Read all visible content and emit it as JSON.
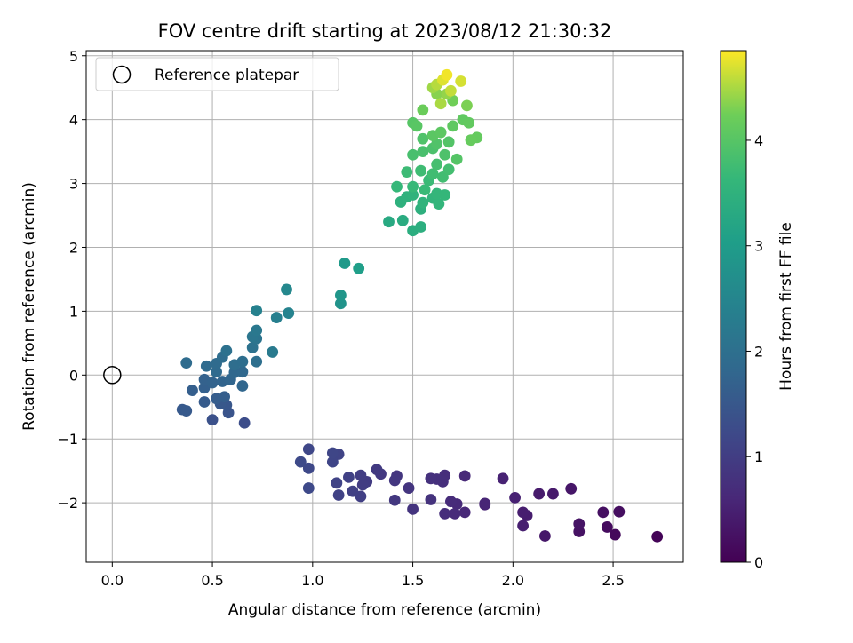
{
  "chart_data": {
    "type": "scatter",
    "title": "FOV centre drift starting at 2023/08/12 21:30:32",
    "xlabel": "Angular distance from reference (arcmin)",
    "ylabel": "Rotation from reference (arcmin)",
    "xlim": [
      -0.13,
      2.85
    ],
    "ylim": [
      -2.93,
      5.08
    ],
    "xticks": [
      0.0,
      0.5,
      1.0,
      1.5,
      2.0,
      2.5
    ],
    "xtick_labels": [
      "0.0",
      "0.5",
      "1.0",
      "1.5",
      "2.0",
      "2.5"
    ],
    "yticks": [
      -2,
      -1,
      0,
      1,
      2,
      3,
      4,
      5
    ],
    "ytick_labels": [
      "−2",
      "−1",
      "0",
      "1",
      "2",
      "3",
      "4",
      "5"
    ],
    "grid": true,
    "legend": {
      "placement": "top-left",
      "entries": [
        "Reference platepar"
      ]
    },
    "reference_point": {
      "name": "Reference platepar",
      "x": 0.0,
      "y": 0.0
    },
    "colorbar": {
      "label": "Hours from first FF file",
      "colormap": "viridis",
      "range": [
        0,
        4.85
      ],
      "ticks": [
        0,
        1,
        2,
        3,
        4
      ],
      "tick_labels": [
        "0",
        "1",
        "2",
        "3",
        "4"
      ]
    },
    "points": [
      [
        2.72,
        -2.53,
        0.05
      ],
      [
        2.51,
        -2.5,
        0.12
      ],
      [
        2.47,
        -2.38,
        0.16
      ],
      [
        2.53,
        -2.14,
        0.2
      ],
      [
        2.45,
        -2.15,
        0.22
      ],
      [
        2.33,
        -2.45,
        0.26
      ],
      [
        2.33,
        -2.33,
        0.29
      ],
      [
        2.29,
        -1.78,
        0.33
      ],
      [
        2.16,
        -2.52,
        0.36
      ],
      [
        2.2,
        -1.86,
        0.38
      ],
      [
        2.13,
        -1.86,
        0.4
      ],
      [
        2.07,
        -2.2,
        0.43
      ],
      [
        2.05,
        -2.15,
        0.45
      ],
      [
        2.05,
        -2.36,
        0.47
      ],
      [
        2.01,
        -1.92,
        0.5
      ],
      [
        1.95,
        -1.62,
        0.52
      ],
      [
        1.86,
        -2.03,
        0.55
      ],
      [
        1.86,
        -2.01,
        0.57
      ],
      [
        1.76,
        -2.15,
        0.6
      ],
      [
        1.76,
        -1.58,
        0.62
      ],
      [
        1.72,
        -2.02,
        0.64
      ],
      [
        1.71,
        -2.17,
        0.66
      ],
      [
        1.69,
        -1.98,
        0.68
      ],
      [
        1.66,
        -2.17,
        0.7
      ],
      [
        1.66,
        -1.57,
        0.72
      ],
      [
        1.65,
        -1.67,
        0.74
      ],
      [
        1.62,
        -1.63,
        0.76
      ],
      [
        1.59,
        -1.62,
        0.78
      ],
      [
        1.59,
        -1.95,
        0.8
      ],
      [
        1.5,
        -2.1,
        0.82
      ],
      [
        1.48,
        -1.77,
        0.84
      ],
      [
        1.42,
        -1.58,
        0.86
      ],
      [
        1.41,
        -1.65,
        0.88
      ],
      [
        1.41,
        -1.96,
        0.9
      ],
      [
        1.34,
        -1.55,
        0.92
      ],
      [
        1.32,
        -1.48,
        0.94
      ],
      [
        1.27,
        -1.67,
        0.96
      ],
      [
        1.25,
        -1.72,
        0.98
      ],
      [
        1.24,
        -1.57,
        1.0
      ],
      [
        1.24,
        -1.9,
        1.02
      ],
      [
        1.2,
        -1.82,
        1.04
      ],
      [
        1.18,
        -1.6,
        1.06
      ],
      [
        1.13,
        -1.88,
        1.08
      ],
      [
        1.12,
        -1.69,
        1.1
      ],
      [
        1.13,
        -1.24,
        1.12
      ],
      [
        1.1,
        -1.36,
        1.13
      ],
      [
        1.1,
        -1.22,
        1.15
      ],
      [
        0.98,
        -1.16,
        1.17
      ],
      [
        0.98,
        -1.46,
        1.19
      ],
      [
        0.98,
        -1.77,
        1.21
      ],
      [
        0.94,
        -1.36,
        1.23
      ],
      [
        0.66,
        -0.75,
        1.3
      ],
      [
        0.5,
        -0.7,
        1.36
      ],
      [
        0.58,
        -0.59,
        1.42
      ],
      [
        0.57,
        -0.47,
        1.47
      ],
      [
        0.54,
        -0.45,
        1.5
      ],
      [
        0.35,
        -0.54,
        1.52
      ],
      [
        0.37,
        -0.56,
        1.55
      ],
      [
        0.46,
        -0.42,
        1.57
      ],
      [
        0.52,
        -0.37,
        1.6
      ],
      [
        0.56,
        -0.34,
        1.63
      ],
      [
        0.4,
        -0.24,
        1.65
      ],
      [
        0.46,
        -0.2,
        1.67
      ],
      [
        0.46,
        -0.07,
        1.7
      ],
      [
        0.5,
        -0.12,
        1.72
      ],
      [
        0.55,
        -0.1,
        1.75
      ],
      [
        0.59,
        -0.07,
        1.77
      ],
      [
        0.65,
        -0.17,
        1.8
      ],
      [
        0.61,
        0.04,
        1.82
      ],
      [
        0.65,
        0.05,
        1.84
      ],
      [
        0.52,
        0.05,
        1.86
      ],
      [
        0.47,
        0.14,
        1.88
      ],
      [
        0.52,
        0.18,
        1.9
      ],
      [
        0.37,
        0.19,
        1.91
      ],
      [
        0.55,
        0.28,
        1.93
      ],
      [
        0.61,
        0.16,
        1.95
      ],
      [
        0.65,
        0.21,
        1.97
      ],
      [
        0.72,
        0.21,
        1.99
      ],
      [
        0.57,
        0.38,
        2.02
      ],
      [
        0.7,
        0.43,
        2.05
      ],
      [
        0.72,
        0.57,
        2.1
      ],
      [
        0.7,
        0.6,
        2.15
      ],
      [
        0.72,
        0.7,
        2.2
      ],
      [
        0.8,
        0.36,
        2.25
      ],
      [
        0.82,
        0.9,
        2.35
      ],
      [
        0.72,
        1.01,
        2.4
      ],
      [
        0.88,
        0.97,
        2.45
      ],
      [
        0.87,
        1.34,
        2.55
      ],
      [
        1.14,
        1.12,
        2.8
      ],
      [
        1.14,
        1.25,
        2.85
      ],
      [
        1.16,
        1.75,
        2.95
      ],
      [
        1.23,
        1.67,
        3.05
      ],
      [
        1.38,
        2.4,
        3.3
      ],
      [
        1.45,
        2.42,
        3.35
      ],
      [
        1.5,
        2.26,
        3.4
      ],
      [
        1.54,
        2.32,
        3.42
      ],
      [
        1.54,
        2.6,
        3.45
      ],
      [
        1.44,
        2.71,
        3.47
      ],
      [
        1.47,
        2.79,
        3.5
      ],
      [
        1.5,
        2.82,
        3.52
      ],
      [
        1.55,
        2.7,
        3.54
      ],
      [
        1.6,
        2.77,
        3.56
      ],
      [
        1.63,
        2.68,
        3.58
      ],
      [
        1.62,
        2.84,
        3.6
      ],
      [
        1.66,
        2.82,
        3.62
      ],
      [
        1.42,
        2.95,
        3.64
      ],
      [
        1.5,
        2.95,
        3.66
      ],
      [
        1.56,
        2.9,
        3.68
      ],
      [
        1.58,
        3.05,
        3.7
      ],
      [
        1.47,
        3.18,
        3.72
      ],
      [
        1.54,
        3.2,
        3.74
      ],
      [
        1.6,
        3.15,
        3.76
      ],
      [
        1.65,
        3.1,
        3.78
      ],
      [
        1.68,
        3.22,
        3.8
      ],
      [
        1.62,
        3.3,
        3.82
      ],
      [
        1.5,
        3.45,
        3.84
      ],
      [
        1.55,
        3.5,
        3.86
      ],
      [
        1.6,
        3.55,
        3.88
      ],
      [
        1.66,
        3.45,
        3.9
      ],
      [
        1.55,
        3.7,
        3.92
      ],
      [
        1.62,
        3.62,
        3.94
      ],
      [
        1.68,
        3.65,
        3.96
      ],
      [
        1.72,
        3.38,
        3.98
      ],
      [
        1.5,
        3.95,
        4.0
      ],
      [
        1.52,
        3.9,
        4.02
      ],
      [
        1.6,
        3.75,
        4.04
      ],
      [
        1.64,
        3.8,
        4.06
      ],
      [
        1.7,
        3.9,
        4.08
      ],
      [
        1.75,
        4.0,
        4.1
      ],
      [
        1.78,
        3.95,
        4.12
      ],
      [
        1.82,
        3.72,
        4.14
      ],
      [
        1.79,
        3.68,
        4.16
      ],
      [
        1.55,
        4.15,
        4.2
      ],
      [
        1.7,
        4.3,
        4.25
      ],
      [
        1.77,
        4.22,
        4.3
      ],
      [
        1.62,
        4.4,
        4.35
      ],
      [
        1.67,
        4.4,
        4.4
      ],
      [
        1.6,
        4.5,
        4.45
      ],
      [
        1.64,
        4.25,
        4.5
      ],
      [
        1.62,
        4.55,
        4.55
      ],
      [
        1.69,
        4.45,
        4.6
      ],
      [
        1.74,
        4.6,
        4.68
      ],
      [
        1.65,
        4.62,
        4.72
      ],
      [
        1.67,
        4.7,
        4.8
      ]
    ]
  }
}
